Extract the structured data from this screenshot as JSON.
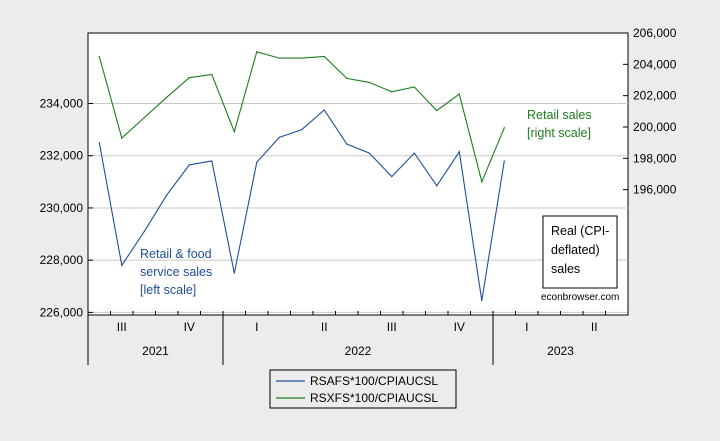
{
  "chart_data": {
    "type": "line",
    "x": [
      "2021-07",
      "2021-08",
      "2021-09",
      "2021-10",
      "2021-11",
      "2021-12",
      "2022-01",
      "2022-02",
      "2022-03",
      "2022-04",
      "2022-05",
      "2022-06",
      "2022-07",
      "2022-08",
      "2022-09",
      "2022-10",
      "2022-11",
      "2022-12",
      "2023-01"
    ],
    "x_quarter_ticks": [
      "III",
      "IV",
      "I",
      "II",
      "III",
      "IV",
      "I",
      "II"
    ],
    "x_year_labels": [
      "2021",
      "2022",
      "2023"
    ],
    "y_left": {
      "ticks": [
        "226,000",
        "228,000",
        "230,000",
        "232,000",
        "234,000"
      ],
      "ylim": [
        225900,
        236700
      ]
    },
    "y_right": {
      "ticks": [
        "196,000",
        "198,000",
        "200,000",
        "202,000",
        "204,000",
        "206,000"
      ],
      "ylim": [
        188000,
        206000
      ]
    },
    "grid": "horizontal",
    "series": [
      {
        "name": "RSAFS*100/CPIAUCSL",
        "axis": "left",
        "color": "#1f4e9c",
        "values": [
          232500,
          227800,
          229100,
          230500,
          231650,
          231800,
          227500,
          231750,
          232700,
          233000,
          233750,
          232450,
          232100,
          231200,
          232100,
          230850,
          232150,
          226450,
          231800
        ]
      },
      {
        "name": "RSXFS*100/CPIAUCSL",
        "axis": "right",
        "color": "#1e7d1e",
        "values": [
          204500,
          199300,
          200600,
          201900,
          203150,
          203350,
          199700,
          204800,
          204400,
          204400,
          204500,
          203100,
          202850,
          202250,
          202550,
          201050,
          202100,
          196500,
          199950
        ]
      }
    ],
    "annotations": {
      "left_label": [
        "Retail & food",
        "service sales",
        "[left scale]"
      ],
      "right_label": [
        "Retail sales",
        "[right scale]"
      ],
      "box_label": [
        "Real (CPI-",
        "deflated)",
        "sales"
      ],
      "credit": "econbrowser.com"
    },
    "legend": {
      "placement": "bottom-center",
      "entries": [
        "RSAFS*100/CPIAUCSL",
        "RSXFS*100/CPIAUCSL"
      ]
    }
  }
}
